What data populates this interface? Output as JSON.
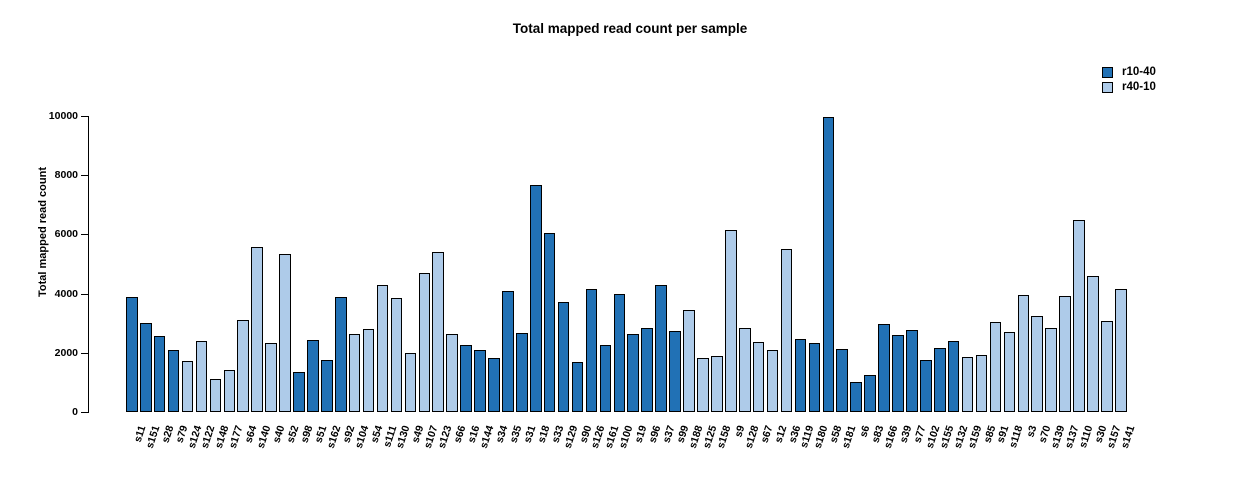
{
  "title": "Total mapped read count per sample",
  "chart_data": {
    "type": "bar",
    "title": "Total mapped read count per sample",
    "xlabel": "",
    "ylabel": "Total mapped read count",
    "ylim": [
      0,
      10000
    ],
    "yticks": [
      0,
      2000,
      4000,
      6000,
      8000,
      10000
    ],
    "grid": false,
    "legend_position": "top-right",
    "legend": [
      {
        "name": "r10-40",
        "color": "#2171B5"
      },
      {
        "name": "r40-10",
        "color": "#AECBE9"
      }
    ],
    "samples": [
      {
        "name": "s11",
        "value": 3900,
        "group": "r10-40"
      },
      {
        "name": "s151",
        "value": 3000,
        "group": "r10-40"
      },
      {
        "name": "s28",
        "value": 2580,
        "group": "r10-40"
      },
      {
        "name": "s79",
        "value": 2100,
        "group": "r10-40"
      },
      {
        "name": "s124",
        "value": 1730,
        "group": "r40-10"
      },
      {
        "name": "s122",
        "value": 2400,
        "group": "r40-10"
      },
      {
        "name": "s148",
        "value": 1100,
        "group": "r40-10"
      },
      {
        "name": "s177",
        "value": 1420,
        "group": "r40-10"
      },
      {
        "name": "s64",
        "value": 3120,
        "group": "r40-10"
      },
      {
        "name": "s140",
        "value": 5560,
        "group": "r40-10"
      },
      {
        "name": "s40",
        "value": 2340,
        "group": "r40-10"
      },
      {
        "name": "s52",
        "value": 5330,
        "group": "r40-10"
      },
      {
        "name": "s98",
        "value": 1360,
        "group": "r10-40"
      },
      {
        "name": "s51",
        "value": 2430,
        "group": "r10-40"
      },
      {
        "name": "s162",
        "value": 1760,
        "group": "r10-40"
      },
      {
        "name": "s92",
        "value": 3870,
        "group": "r10-40"
      },
      {
        "name": "s104",
        "value": 2640,
        "group": "r40-10"
      },
      {
        "name": "s54",
        "value": 2790,
        "group": "r40-10"
      },
      {
        "name": "s111",
        "value": 4300,
        "group": "r40-10"
      },
      {
        "name": "s130",
        "value": 3840,
        "group": "r40-10"
      },
      {
        "name": "s49",
        "value": 2010,
        "group": "r40-10"
      },
      {
        "name": "s107",
        "value": 4680,
        "group": "r40-10"
      },
      {
        "name": "s123",
        "value": 5410,
        "group": "r40-10"
      },
      {
        "name": "s66",
        "value": 2640,
        "group": "r40-10"
      },
      {
        "name": "s16",
        "value": 2270,
        "group": "r10-40"
      },
      {
        "name": "s144",
        "value": 2100,
        "group": "r10-40"
      },
      {
        "name": "s34",
        "value": 1840,
        "group": "r10-40"
      },
      {
        "name": "s35",
        "value": 4100,
        "group": "r10-40"
      },
      {
        "name": "s31",
        "value": 2670,
        "group": "r10-40"
      },
      {
        "name": "s18",
        "value": 7660,
        "group": "r10-40"
      },
      {
        "name": "s33",
        "value": 6050,
        "group": "r10-40"
      },
      {
        "name": "s129",
        "value": 3720,
        "group": "r10-40"
      },
      {
        "name": "s90",
        "value": 1690,
        "group": "r10-40"
      },
      {
        "name": "s126",
        "value": 4140,
        "group": "r10-40"
      },
      {
        "name": "s161",
        "value": 2250,
        "group": "r10-40"
      },
      {
        "name": "s100",
        "value": 3990,
        "group": "r10-40"
      },
      {
        "name": "s19",
        "value": 2620,
        "group": "r10-40"
      },
      {
        "name": "s96",
        "value": 2840,
        "group": "r10-40"
      },
      {
        "name": "s37",
        "value": 4290,
        "group": "r10-40"
      },
      {
        "name": "s99",
        "value": 2740,
        "group": "r10-40"
      },
      {
        "name": "s188",
        "value": 3450,
        "group": "r40-10"
      },
      {
        "name": "s125",
        "value": 1830,
        "group": "r40-10"
      },
      {
        "name": "s158",
        "value": 1900,
        "group": "r40-10"
      },
      {
        "name": "s9",
        "value": 6160,
        "group": "r40-10"
      },
      {
        "name": "s128",
        "value": 2830,
        "group": "r40-10"
      },
      {
        "name": "s67",
        "value": 2350,
        "group": "r40-10"
      },
      {
        "name": "s12",
        "value": 2110,
        "group": "r40-10"
      },
      {
        "name": "s36",
        "value": 5490,
        "group": "r40-10"
      },
      {
        "name": "s119",
        "value": 2460,
        "group": "r10-40"
      },
      {
        "name": "s180",
        "value": 2340,
        "group": "r10-40"
      },
      {
        "name": "s58",
        "value": 9950,
        "group": "r10-40"
      },
      {
        "name": "s181",
        "value": 2130,
        "group": "r10-40"
      },
      {
        "name": "s6",
        "value": 1000,
        "group": "r10-40"
      },
      {
        "name": "s83",
        "value": 1260,
        "group": "r10-40"
      },
      {
        "name": "s166",
        "value": 2960,
        "group": "r10-40"
      },
      {
        "name": "s39",
        "value": 2600,
        "group": "r10-40"
      },
      {
        "name": "s77",
        "value": 2770,
        "group": "r10-40"
      },
      {
        "name": "s102",
        "value": 1760,
        "group": "r10-40"
      },
      {
        "name": "s155",
        "value": 2170,
        "group": "r10-40"
      },
      {
        "name": "s132",
        "value": 2400,
        "group": "r10-40"
      },
      {
        "name": "s159",
        "value": 1850,
        "group": "r40-10"
      },
      {
        "name": "s85",
        "value": 1920,
        "group": "r40-10"
      },
      {
        "name": "s91",
        "value": 3050,
        "group": "r40-10"
      },
      {
        "name": "s118",
        "value": 2710,
        "group": "r40-10"
      },
      {
        "name": "s3",
        "value": 3950,
        "group": "r40-10"
      },
      {
        "name": "s70",
        "value": 3250,
        "group": "r40-10"
      },
      {
        "name": "s139",
        "value": 2830,
        "group": "r40-10"
      },
      {
        "name": "s137",
        "value": 3930,
        "group": "r40-10"
      },
      {
        "name": "s110",
        "value": 6500,
        "group": "r40-10"
      },
      {
        "name": "s30",
        "value": 4600,
        "group": "r40-10"
      },
      {
        "name": "s157",
        "value": 3070,
        "group": "r40-10"
      },
      {
        "name": "s141",
        "value": 4170,
        "group": "r40-10"
      }
    ]
  }
}
